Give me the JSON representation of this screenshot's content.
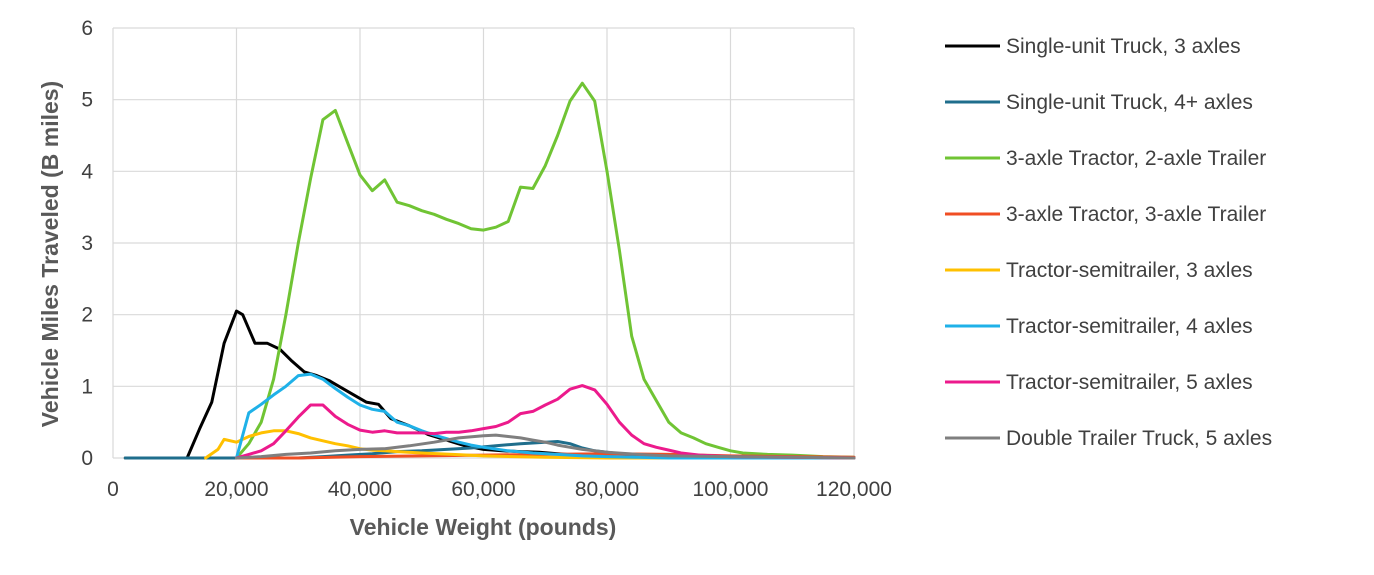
{
  "chart_data": {
    "type": "line",
    "xlabel": "Vehicle Weight (pounds)",
    "ylabel": "Vehicle Miles Traveled (B miles)",
    "xlim": [
      0,
      120000
    ],
    "ylim": [
      0,
      6
    ],
    "x_ticks": [
      "0",
      "20,000",
      "40,000",
      "60,000",
      "80,000",
      "100,000",
      "120,000"
    ],
    "y_ticks": [
      "0",
      "1",
      "2",
      "3",
      "4",
      "5",
      "6"
    ],
    "grid": true,
    "legend_position": "right",
    "series": [
      {
        "name": "Single-unit Truck, 3 axles",
        "color": "#000000",
        "points": [
          [
            2000,
            0
          ],
          [
            12000,
            0
          ],
          [
            14000,
            0.4
          ],
          [
            16000,
            0.78
          ],
          [
            18000,
            1.6
          ],
          [
            20000,
            2.05
          ],
          [
            21000,
            2.0
          ],
          [
            23000,
            1.6
          ],
          [
            25000,
            1.6
          ],
          [
            27000,
            1.52
          ],
          [
            29000,
            1.35
          ],
          [
            31000,
            1.2
          ],
          [
            33000,
            1.15
          ],
          [
            35000,
            1.08
          ],
          [
            37000,
            0.98
          ],
          [
            39000,
            0.88
          ],
          [
            41000,
            0.78
          ],
          [
            43000,
            0.75
          ],
          [
            45000,
            0.55
          ],
          [
            48000,
            0.45
          ],
          [
            51000,
            0.33
          ],
          [
            54000,
            0.25
          ],
          [
            57000,
            0.17
          ],
          [
            60000,
            0.12
          ],
          [
            63000,
            0.1
          ],
          [
            66000,
            0.09
          ],
          [
            69000,
            0.08
          ],
          [
            72000,
            0.06
          ],
          [
            75000,
            0.04
          ],
          [
            80000,
            0.02
          ],
          [
            90000,
            0
          ],
          [
            120000,
            0
          ]
        ]
      },
      {
        "name": "Single-unit Truck, 4+ axles",
        "color": "#1F6E8C",
        "points": [
          [
            2000,
            0
          ],
          [
            30000,
            0
          ],
          [
            34000,
            0.02
          ],
          [
            38000,
            0.04
          ],
          [
            42000,
            0.06
          ],
          [
            46000,
            0.09
          ],
          [
            50000,
            0.1
          ],
          [
            54000,
            0.12
          ],
          [
            58000,
            0.14
          ],
          [
            62000,
            0.17
          ],
          [
            66000,
            0.2
          ],
          [
            70000,
            0.22
          ],
          [
            72000,
            0.23
          ],
          [
            74000,
            0.2
          ],
          [
            76000,
            0.14
          ],
          [
            78000,
            0.1
          ],
          [
            82000,
            0.06
          ],
          [
            86000,
            0.04
          ],
          [
            90000,
            0.02
          ],
          [
            95000,
            0.01
          ],
          [
            100000,
            0
          ],
          [
            120000,
            0
          ]
        ]
      },
      {
        "name": "3-axle Tractor, 2-axle Trailer",
        "color": "#70C434",
        "points": [
          [
            20000,
            0
          ],
          [
            22000,
            0.2
          ],
          [
            24000,
            0.5
          ],
          [
            26000,
            1.1
          ],
          [
            28000,
            2.0
          ],
          [
            30000,
            3.0
          ],
          [
            32000,
            3.9
          ],
          [
            34000,
            4.72
          ],
          [
            36000,
            4.85
          ],
          [
            38000,
            4.4
          ],
          [
            40000,
            3.95
          ],
          [
            42000,
            3.73
          ],
          [
            44000,
            3.88
          ],
          [
            46000,
            3.57
          ],
          [
            48000,
            3.52
          ],
          [
            50000,
            3.45
          ],
          [
            52000,
            3.4
          ],
          [
            54000,
            3.33
          ],
          [
            56000,
            3.27
          ],
          [
            58000,
            3.2
          ],
          [
            60000,
            3.18
          ],
          [
            62000,
            3.22
          ],
          [
            64000,
            3.3
          ],
          [
            66000,
            3.78
          ],
          [
            68000,
            3.76
          ],
          [
            70000,
            4.08
          ],
          [
            72000,
            4.5
          ],
          [
            74000,
            4.98
          ],
          [
            76000,
            5.23
          ],
          [
            78000,
            4.98
          ],
          [
            80000,
            4.0
          ],
          [
            82000,
            2.9
          ],
          [
            84000,
            1.7
          ],
          [
            86000,
            1.1
          ],
          [
            88000,
            0.8
          ],
          [
            90000,
            0.5
          ],
          [
            92000,
            0.35
          ],
          [
            94000,
            0.28
          ],
          [
            96000,
            0.2
          ],
          [
            98000,
            0.15
          ],
          [
            100000,
            0.1
          ],
          [
            102000,
            0.07
          ],
          [
            106000,
            0.05
          ],
          [
            110000,
            0.04
          ],
          [
            115000,
            0.02
          ],
          [
            120000,
            0.01
          ]
        ]
      },
      {
        "name": "3-axle Tractor, 3-axle Trailer",
        "color": "#F04E23",
        "points": [
          [
            20000,
            0
          ],
          [
            30000,
            0
          ],
          [
            40000,
            0.02
          ],
          [
            50000,
            0.03
          ],
          [
            60000,
            0.04
          ],
          [
            70000,
            0.05
          ],
          [
            80000,
            0.06
          ],
          [
            90000,
            0.05
          ],
          [
            100000,
            0.03
          ],
          [
            110000,
            0.02
          ],
          [
            120000,
            0.01
          ]
        ]
      },
      {
        "name": "Tractor-semitrailer, 3 axles",
        "color": "#FFC000",
        "points": [
          [
            15000,
            0
          ],
          [
            17000,
            0.12
          ],
          [
            18000,
            0.26
          ],
          [
            20000,
            0.22
          ],
          [
            22000,
            0.3
          ],
          [
            24000,
            0.35
          ],
          [
            26000,
            0.38
          ],
          [
            28000,
            0.38
          ],
          [
            30000,
            0.34
          ],
          [
            32000,
            0.28
          ],
          [
            34000,
            0.24
          ],
          [
            36000,
            0.2
          ],
          [
            38000,
            0.17
          ],
          [
            40000,
            0.13
          ],
          [
            42000,
            0.11
          ],
          [
            44000,
            0.1
          ],
          [
            46000,
            0.09
          ],
          [
            50000,
            0.07
          ],
          [
            55000,
            0.05
          ],
          [
            60000,
            0.03
          ],
          [
            70000,
            0.01
          ],
          [
            80000,
            0
          ],
          [
            120000,
            0
          ]
        ]
      },
      {
        "name": "Tractor-semitrailer, 4 axles",
        "color": "#1FB1E8",
        "points": [
          [
            20000,
            0
          ],
          [
            22000,
            0.63
          ],
          [
            24000,
            0.75
          ],
          [
            26000,
            0.88
          ],
          [
            28000,
            1.0
          ],
          [
            30000,
            1.15
          ],
          [
            32000,
            1.17
          ],
          [
            34000,
            1.1
          ],
          [
            36000,
            0.97
          ],
          [
            38000,
            0.85
          ],
          [
            40000,
            0.74
          ],
          [
            42000,
            0.68
          ],
          [
            44000,
            0.65
          ],
          [
            46000,
            0.5
          ],
          [
            48000,
            0.45
          ],
          [
            50000,
            0.38
          ],
          [
            52000,
            0.32
          ],
          [
            54000,
            0.27
          ],
          [
            56000,
            0.22
          ],
          [
            58000,
            0.18
          ],
          [
            60000,
            0.15
          ],
          [
            64000,
            0.1
          ],
          [
            68000,
            0.07
          ],
          [
            72000,
            0.05
          ],
          [
            76000,
            0.03
          ],
          [
            80000,
            0.02
          ],
          [
            85000,
            0.01
          ],
          [
            90000,
            0
          ],
          [
            120000,
            0
          ]
        ]
      },
      {
        "name": "Tractor-semitrailer, 5 axles",
        "color": "#EC1A8C",
        "points": [
          [
            20000,
            0
          ],
          [
            22000,
            0.05
          ],
          [
            24000,
            0.1
          ],
          [
            26000,
            0.2
          ],
          [
            28000,
            0.38
          ],
          [
            30000,
            0.57
          ],
          [
            32000,
            0.74
          ],
          [
            34000,
            0.74
          ],
          [
            36000,
            0.58
          ],
          [
            38000,
            0.47
          ],
          [
            40000,
            0.39
          ],
          [
            42000,
            0.36
          ],
          [
            44000,
            0.38
          ],
          [
            46000,
            0.35
          ],
          [
            48000,
            0.35
          ],
          [
            50000,
            0.35
          ],
          [
            52000,
            0.34
          ],
          [
            54000,
            0.36
          ],
          [
            56000,
            0.36
          ],
          [
            58000,
            0.38
          ],
          [
            60000,
            0.41
          ],
          [
            62000,
            0.44
          ],
          [
            64000,
            0.5
          ],
          [
            66000,
            0.62
          ],
          [
            68000,
            0.65
          ],
          [
            70000,
            0.74
          ],
          [
            72000,
            0.82
          ],
          [
            74000,
            0.96
          ],
          [
            76000,
            1.01
          ],
          [
            78000,
            0.95
          ],
          [
            80000,
            0.75
          ],
          [
            82000,
            0.5
          ],
          [
            84000,
            0.32
          ],
          [
            86000,
            0.2
          ],
          [
            88000,
            0.15
          ],
          [
            90000,
            0.11
          ],
          [
            92000,
            0.07
          ],
          [
            95000,
            0.04
          ],
          [
            100000,
            0.02
          ],
          [
            110000,
            0.01
          ],
          [
            120000,
            0
          ]
        ]
      },
      {
        "name": "Double Trailer Truck, 5 axles",
        "color": "#7F7F7F",
        "points": [
          [
            20000,
            0
          ],
          [
            24000,
            0.02
          ],
          [
            28000,
            0.05
          ],
          [
            32000,
            0.07
          ],
          [
            36000,
            0.1
          ],
          [
            40000,
            0.12
          ],
          [
            44000,
            0.13
          ],
          [
            48000,
            0.17
          ],
          [
            52000,
            0.22
          ],
          [
            56000,
            0.28
          ],
          [
            60000,
            0.31
          ],
          [
            62000,
            0.32
          ],
          [
            64000,
            0.3
          ],
          [
            66000,
            0.28
          ],
          [
            68000,
            0.25
          ],
          [
            70000,
            0.22
          ],
          [
            72000,
            0.18
          ],
          [
            74000,
            0.15
          ],
          [
            76000,
            0.12
          ],
          [
            80000,
            0.08
          ],
          [
            85000,
            0.05
          ],
          [
            90000,
            0.03
          ],
          [
            100000,
            0.02
          ],
          [
            110000,
            0.01
          ],
          [
            120000,
            0
          ]
        ]
      }
    ]
  }
}
